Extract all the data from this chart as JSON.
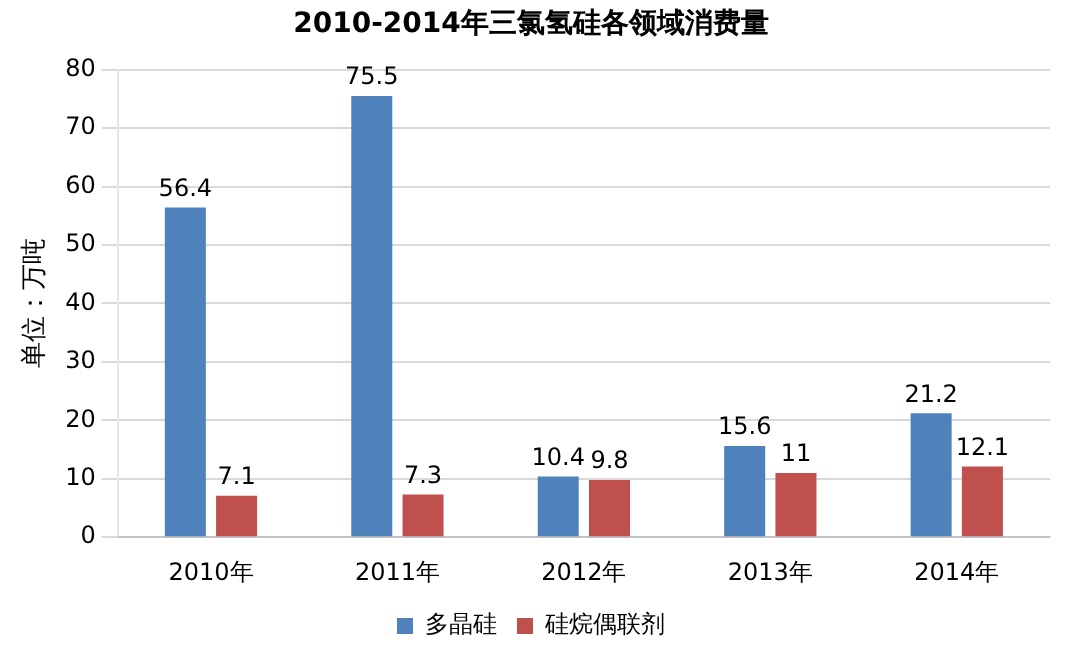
{
  "chart_data": {
    "type": "bar",
    "title": "2010-2014年三氯氢硅各领域消费量",
    "ylabel": "单位：万吨",
    "categories": [
      "2010年",
      "2011年",
      "2012年",
      "2013年",
      "2014年"
    ],
    "series": [
      {
        "name": "多晶硅",
        "color": "#4f81bd",
        "values": [
          56.4,
          75.5,
          10.4,
          15.6,
          21.2
        ]
      },
      {
        "name": "硅烷偶联剂",
        "color": "#c0504d",
        "values": [
          7.1,
          7.3,
          9.8,
          11,
          12.1
        ]
      }
    ],
    "ylim": [
      0,
      80
    ],
    "yticks": [
      0,
      10,
      20,
      30,
      40,
      50,
      60,
      70,
      80
    ],
    "grid": "y",
    "legend": "bottom",
    "data_labels": true
  }
}
